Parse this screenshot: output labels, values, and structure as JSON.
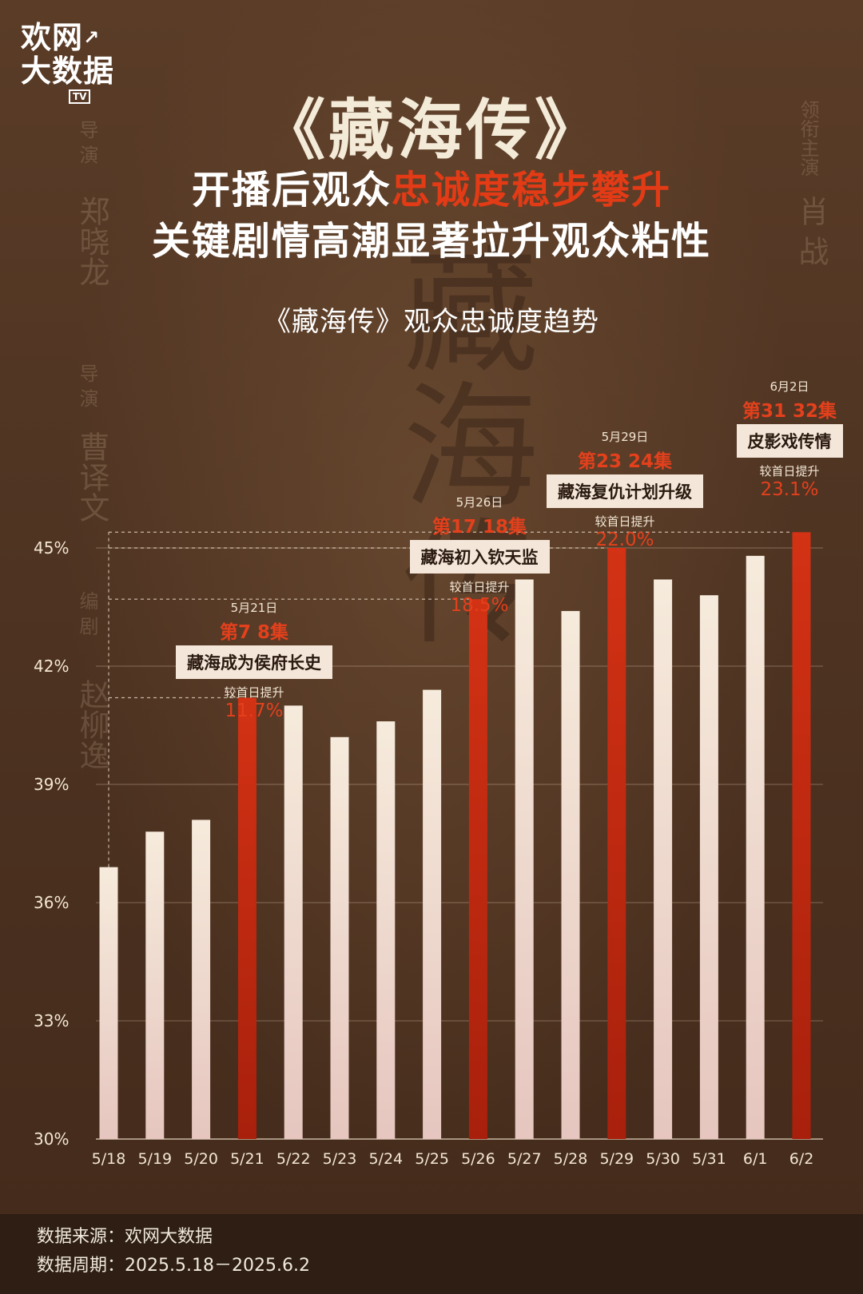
{
  "brand": {
    "line1": "欢网",
    "line2": "大数据",
    "tv": "TV"
  },
  "credits": {
    "director1_role": "导 演",
    "director1_name": "郑晓龙",
    "director2_role": "导 演",
    "director2_name": "曹译文",
    "writer_role": "编 剧",
    "writer_name": "赵柳逸",
    "lead_role": "领衔主演",
    "lead_name": "肖 战",
    "watermark": "藏海传"
  },
  "header": {
    "title": "《藏海传》",
    "subtitle1_pre": "开播后观众",
    "subtitle1_highlight": "忠诚度稳步攀升",
    "subtitle2": "关键剧情高潮显著拉升观众粘性"
  },
  "chart_data": {
    "type": "bar",
    "title": "《藏海传》观众忠诚度趋势",
    "categories": [
      "5/18",
      "5/19",
      "5/20",
      "5/21",
      "5/22",
      "5/23",
      "5/24",
      "5/25",
      "5/26",
      "5/27",
      "5/28",
      "5/29",
      "5/30",
      "5/31",
      "6/1",
      "6/2"
    ],
    "values": [
      36.9,
      37.8,
      38.1,
      41.2,
      41.0,
      40.2,
      40.6,
      41.4,
      43.7,
      44.2,
      43.4,
      45.0,
      44.2,
      43.8,
      44.8,
      45.4
    ],
    "highlighted": [
      false,
      false,
      false,
      true,
      false,
      false,
      false,
      false,
      true,
      false,
      false,
      true,
      false,
      false,
      false,
      true
    ],
    "ylim": [
      30,
      45.5
    ],
    "yticks": [
      "30%",
      "33%",
      "36%",
      "39%",
      "42%",
      "45%"
    ],
    "ytick_values": [
      30,
      33,
      36,
      39,
      42,
      45
    ],
    "colors": {
      "normal": "#f3e6d6",
      "highlight": "#c42a10",
      "accent_text": "#e4401c"
    },
    "annotations": [
      {
        "index": 3,
        "date": "5月21日",
        "episode": "第7 8集",
        "event": "藏海成为侯府长史",
        "compare": "较首日提升",
        "pct": "11.7%"
      },
      {
        "index": 8,
        "date": "5月26日",
        "episode": "第17 18集",
        "event": "藏海初入钦天监",
        "compare": "较首日提升",
        "pct": "18.5%"
      },
      {
        "index": 11,
        "date": "5月29日",
        "episode": "第23 24集",
        "event": "藏海复仇计划升级",
        "compare": "较首日提升",
        "pct": "22.0%"
      },
      {
        "index": 15,
        "date": "6月2日",
        "episode": "第31 32集",
        "event": "皮影戏传情",
        "compare": "较首日提升",
        "pct": "23.1%"
      }
    ]
  },
  "footer": {
    "source": "数据来源：欢网大数据",
    "period": "数据周期：2025.5.18－2025.6.2"
  }
}
